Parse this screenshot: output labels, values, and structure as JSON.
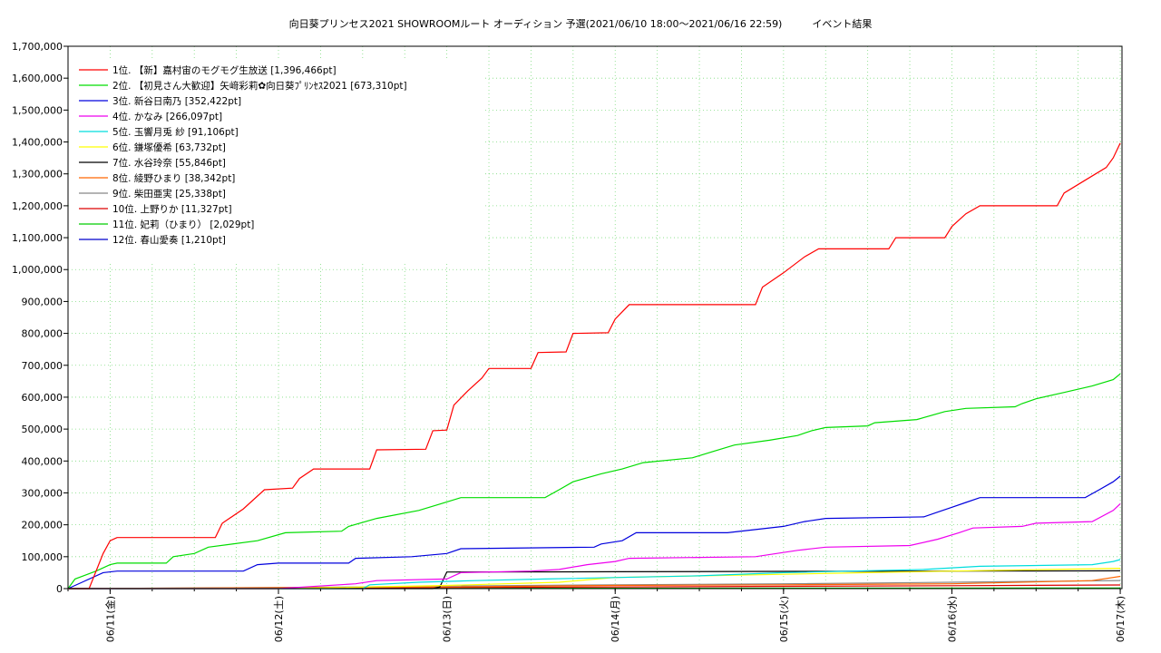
{
  "chart_data": {
    "type": "line",
    "title": "向日葵プリンセス2021 SHOWROOMルート オーディション 予選(2021/06/10 18:00～2021/06/16 22:59)　　　イベント結果",
    "xlabel": "",
    "ylabel": "",
    "ylim": [
      0,
      1700000
    ],
    "yticks": [
      "0",
      "100,000",
      "200,000",
      "300,000",
      "400,000",
      "500,000",
      "600,000",
      "700,000",
      "800,000",
      "900,000",
      "1,000,000",
      "1,100,000",
      "1,200,000",
      "1,300,000",
      "1,400,000",
      "1,500,000",
      "1,600,000",
      "1,700,000"
    ],
    "xlim": [
      "2021-06-10 18:00",
      "2021-06-17 00:00"
    ],
    "xticks": [
      "06/11(金)",
      "06/12(土)",
      "06/13(日)",
      "06/14(月)",
      "06/15(火)",
      "06/16(水)",
      "06/17(木)"
    ],
    "grid": true,
    "legend_position": "top-left",
    "series": [
      {
        "name": "1位. 【新】嘉村宙のモグモグ生放送 [1,396,466pt]",
        "color": "#ff0000",
        "points": [
          [
            "06/10 18:00",
            0
          ],
          [
            "06/10 21:00",
            0
          ],
          [
            "06/10 23:00",
            110000
          ],
          [
            "06/11 00:00",
            150000
          ],
          [
            "06/11 01:00",
            160000
          ],
          [
            "06/11 15:00",
            160000
          ],
          [
            "06/11 16:00",
            205000
          ],
          [
            "06/11 19:00",
            250000
          ],
          [
            "06/11 22:00",
            310000
          ],
          [
            "06/12 02:00",
            315000
          ],
          [
            "06/12 03:00",
            345000
          ],
          [
            "06/12 05:00",
            375000
          ],
          [
            "06/12 13:00",
            375000
          ],
          [
            "06/12 14:00",
            435000
          ],
          [
            "06/12 21:00",
            437000
          ],
          [
            "06/12 22:00",
            495000
          ],
          [
            "06/13 00:00",
            497000
          ],
          [
            "06/13 01:00",
            575000
          ],
          [
            "06/13 03:00",
            620000
          ],
          [
            "06/13 05:00",
            660000
          ],
          [
            "06/13 06:00",
            690000
          ],
          [
            "06/13 12:00",
            690000
          ],
          [
            "06/13 13:00",
            740000
          ],
          [
            "06/13 17:00",
            742000
          ],
          [
            "06/13 18:00",
            800000
          ],
          [
            "06/13 23:00",
            802000
          ],
          [
            "06/14 00:00",
            845000
          ],
          [
            "06/14 02:00",
            890000
          ],
          [
            "06/14 20:00",
            890000
          ],
          [
            "06/14 21:00",
            945000
          ],
          [
            "06/15 00:00",
            990000
          ],
          [
            "06/15 03:00",
            1040000
          ],
          [
            "06/15 05:00",
            1065000
          ],
          [
            "06/15 15:00",
            1065000
          ],
          [
            "06/15 16:00",
            1100000
          ],
          [
            "06/15 23:00",
            1100000
          ],
          [
            "06/16 00:00",
            1135000
          ],
          [
            "06/16 02:00",
            1175000
          ],
          [
            "06/16 04:00",
            1200000
          ],
          [
            "06/16 15:00",
            1200000
          ],
          [
            "06/16 16:00",
            1240000
          ],
          [
            "06/16 19:00",
            1280000
          ],
          [
            "06/16 22:00",
            1320000
          ],
          [
            "06/16 23:00",
            1350000
          ],
          [
            "06/17 00:00",
            1396466
          ]
        ]
      },
      {
        "name": "2位. 【初見さん大歓迎】矢﨑彩莉✿向日葵ﾌﾟﾘﾝｾｽ2021 [673,310pt]",
        "color": "#00dd00",
        "points": [
          [
            "06/10 18:00",
            0
          ],
          [
            "06/10 19:00",
            30000
          ],
          [
            "06/10 22:00",
            55000
          ],
          [
            "06/11 00:00",
            75000
          ],
          [
            "06/11 01:00",
            80000
          ],
          [
            "06/11 08:00",
            80000
          ],
          [
            "06/11 09:00",
            100000
          ],
          [
            "06/11 12:00",
            110000
          ],
          [
            "06/11 14:00",
            130000
          ],
          [
            "06/11 21:00",
            150000
          ],
          [
            "06/12 01:00",
            175000
          ],
          [
            "06/12 09:00",
            180000
          ],
          [
            "06/12 10:00",
            195000
          ],
          [
            "06/12 14:00",
            220000
          ],
          [
            "06/12 20:00",
            245000
          ],
          [
            "06/12 23:00",
            265000
          ],
          [
            "06/13 02:00",
            285000
          ],
          [
            "06/13 14:00",
            285000
          ],
          [
            "06/13 16:00",
            310000
          ],
          [
            "06/13 18:00",
            335000
          ],
          [
            "06/13 22:00",
            360000
          ],
          [
            "06/14 01:00",
            375000
          ],
          [
            "06/14 04:00",
            395000
          ],
          [
            "06/14 11:00",
            410000
          ],
          [
            "06/14 14:00",
            430000
          ],
          [
            "06/14 17:00",
            450000
          ],
          [
            "06/14 22:00",
            465000
          ],
          [
            "06/15 02:00",
            480000
          ],
          [
            "06/15 04:00",
            495000
          ],
          [
            "06/15 06:00",
            505000
          ],
          [
            "06/15 12:00",
            510000
          ],
          [
            "06/15 13:00",
            520000
          ],
          [
            "06/15 19:00",
            530000
          ],
          [
            "06/15 23:00",
            555000
          ],
          [
            "06/16 02:00",
            565000
          ],
          [
            "06/16 09:00",
            570000
          ],
          [
            "06/16 10:00",
            580000
          ],
          [
            "06/16 12:00",
            595000
          ],
          [
            "06/16 16:00",
            615000
          ],
          [
            "06/16 20:00",
            635000
          ],
          [
            "06/16 23:00",
            655000
          ],
          [
            "06/17 00:00",
            673310
          ]
        ]
      },
      {
        "name": "3位. 新谷日南乃 [352,422pt]",
        "color": "#0000dd",
        "points": [
          [
            "06/10 18:00",
            0
          ],
          [
            "06/10 20:00",
            20000
          ],
          [
            "06/10 23:00",
            50000
          ],
          [
            "06/11 01:00",
            55000
          ],
          [
            "06/11 19:00",
            55000
          ],
          [
            "06/11 21:00",
            75000
          ],
          [
            "06/12 00:00",
            80000
          ],
          [
            "06/12 10:00",
            80000
          ],
          [
            "06/12 11:00",
            95000
          ],
          [
            "06/12 19:00",
            100000
          ],
          [
            "06/13 00:00",
            110000
          ],
          [
            "06/13 02:00",
            125000
          ],
          [
            "06/13 21:00",
            130000
          ],
          [
            "06/13 22:00",
            140000
          ],
          [
            "06/14 01:00",
            150000
          ],
          [
            "06/14 03:00",
            175000
          ],
          [
            "06/14 16:00",
            175000
          ],
          [
            "06/14 20:00",
            185000
          ],
          [
            "06/15 00:00",
            195000
          ],
          [
            "06/15 03:00",
            210000
          ],
          [
            "06/15 06:00",
            220000
          ],
          [
            "06/15 20:00",
            225000
          ],
          [
            "06/15 22:00",
            240000
          ],
          [
            "06/16 00:00",
            255000
          ],
          [
            "06/16 02:00",
            270000
          ],
          [
            "06/16 04:00",
            285000
          ],
          [
            "06/16 19:00",
            285000
          ],
          [
            "06/16 21:00",
            310000
          ],
          [
            "06/16 23:00",
            335000
          ],
          [
            "06/17 00:00",
            352422
          ]
        ]
      },
      {
        "name": "4位. かなみ [266,097pt]",
        "color": "#ee00ee",
        "points": [
          [
            "06/10 18:00",
            0
          ],
          [
            "06/12 00:00",
            0
          ],
          [
            "06/12 11:00",
            15000
          ],
          [
            "06/12 14:00",
            25000
          ],
          [
            "06/13 00:00",
            30000
          ],
          [
            "06/13 02:00",
            50000
          ],
          [
            "06/13 12:00",
            55000
          ],
          [
            "06/13 16:00",
            60000
          ],
          [
            "06/13 20:00",
            75000
          ],
          [
            "06/14 00:00",
            85000
          ],
          [
            "06/14 02:00",
            95000
          ],
          [
            "06/14 20:00",
            100000
          ],
          [
            "06/15 02:00",
            120000
          ],
          [
            "06/15 06:00",
            130000
          ],
          [
            "06/15 18:00",
            135000
          ],
          [
            "06/15 22:00",
            155000
          ],
          [
            "06/16 01:00",
            175000
          ],
          [
            "06/16 03:00",
            190000
          ],
          [
            "06/16 10:00",
            195000
          ],
          [
            "06/16 12:00",
            205000
          ],
          [
            "06/16 20:00",
            210000
          ],
          [
            "06/16 23:00",
            245000
          ],
          [
            "06/17 00:00",
            266097
          ]
        ]
      },
      {
        "name": "5位. 玉響月兎 紗 [91,106pt]",
        "color": "#00dddd",
        "points": [
          [
            "06/10 18:00",
            0
          ],
          [
            "06/12 12:00",
            0
          ],
          [
            "06/12 13:00",
            12000
          ],
          [
            "06/12 20:00",
            20000
          ],
          [
            "06/13 04:00",
            25000
          ],
          [
            "06/13 14:00",
            30000
          ],
          [
            "06/14 12:00",
            40000
          ],
          [
            "06/15 00:00",
            50000
          ],
          [
            "06/15 20:00",
            60000
          ],
          [
            "06/16 00:00",
            65000
          ],
          [
            "06/16 04:00",
            70000
          ],
          [
            "06/16 20:00",
            75000
          ],
          [
            "06/16 23:00",
            85000
          ],
          [
            "06/17 00:00",
            91106
          ]
        ]
      },
      {
        "name": "6位. 鎌塚優希 [63,732pt]",
        "color": "#ffff00",
        "points": [
          [
            "06/10 18:00",
            0
          ],
          [
            "06/12 00:00",
            0
          ],
          [
            "06/13 00:00",
            10000
          ],
          [
            "06/13 16:00",
            20000
          ],
          [
            "06/14 00:00",
            35000
          ],
          [
            "06/15 00:00",
            45000
          ],
          [
            "06/15 12:00",
            50000
          ],
          [
            "06/16 00:00",
            55000
          ],
          [
            "06/17 00:00",
            63732
          ]
        ]
      },
      {
        "name": "7位. 水谷玲奈 [55,846pt]",
        "color": "#000000",
        "points": [
          [
            "06/10 18:00",
            0
          ],
          [
            "06/12 22:00",
            0
          ],
          [
            "06/12 23:00",
            5000
          ],
          [
            "06/13 00:00",
            52000
          ],
          [
            "06/14 00:00",
            53000
          ],
          [
            "06/15 00:00",
            54000
          ],
          [
            "06/16 00:00",
            55000
          ],
          [
            "06/17 00:00",
            55846
          ]
        ]
      },
      {
        "name": "8位. 綾野ひまり [38,342pt]",
        "color": "#ff6600",
        "points": [
          [
            "06/10 18:00",
            0
          ],
          [
            "06/11 12:00",
            2000
          ],
          [
            "06/13 00:00",
            5000
          ],
          [
            "06/14 00:00",
            10000
          ],
          [
            "06/15 00:00",
            12000
          ],
          [
            "06/16 00:00",
            15000
          ],
          [
            "06/16 20:00",
            25000
          ],
          [
            "06/17 00:00",
            38342
          ]
        ]
      },
      {
        "name": "9位. 柴田亜実 [25,338pt]",
        "color": "#888888",
        "points": [
          [
            "06/10 18:00",
            0
          ],
          [
            "06/12 00:00",
            3000
          ],
          [
            "06/13 00:00",
            8000
          ],
          [
            "06/14 00:00",
            12000
          ],
          [
            "06/15 00:00",
            15000
          ],
          [
            "06/16 00:00",
            20000
          ],
          [
            "06/17 00:00",
            25338
          ]
        ]
      },
      {
        "name": "10位. 上野りか [11,327pt]",
        "color": "#dd0000",
        "points": [
          [
            "06/10 18:00",
            0
          ],
          [
            "06/12 00:00",
            2000
          ],
          [
            "06/14 00:00",
            5000
          ],
          [
            "06/16 00:00",
            9000
          ],
          [
            "06/17 00:00",
            11327
          ]
        ]
      },
      {
        "name": "11位. 妃莉（ひまり） [2,029pt]",
        "color": "#00cc00",
        "points": [
          [
            "06/10 18:00",
            0
          ],
          [
            "06/13 00:00",
            800
          ],
          [
            "06/17 00:00",
            2029
          ]
        ]
      },
      {
        "name": "12位. 春山愛奏 [1,210pt]",
        "color": "#0000cc",
        "points": [
          [
            "06/10 18:00",
            0
          ],
          [
            "06/13 00:00",
            500
          ],
          [
            "06/17 00:00",
            1210
          ]
        ]
      }
    ]
  }
}
